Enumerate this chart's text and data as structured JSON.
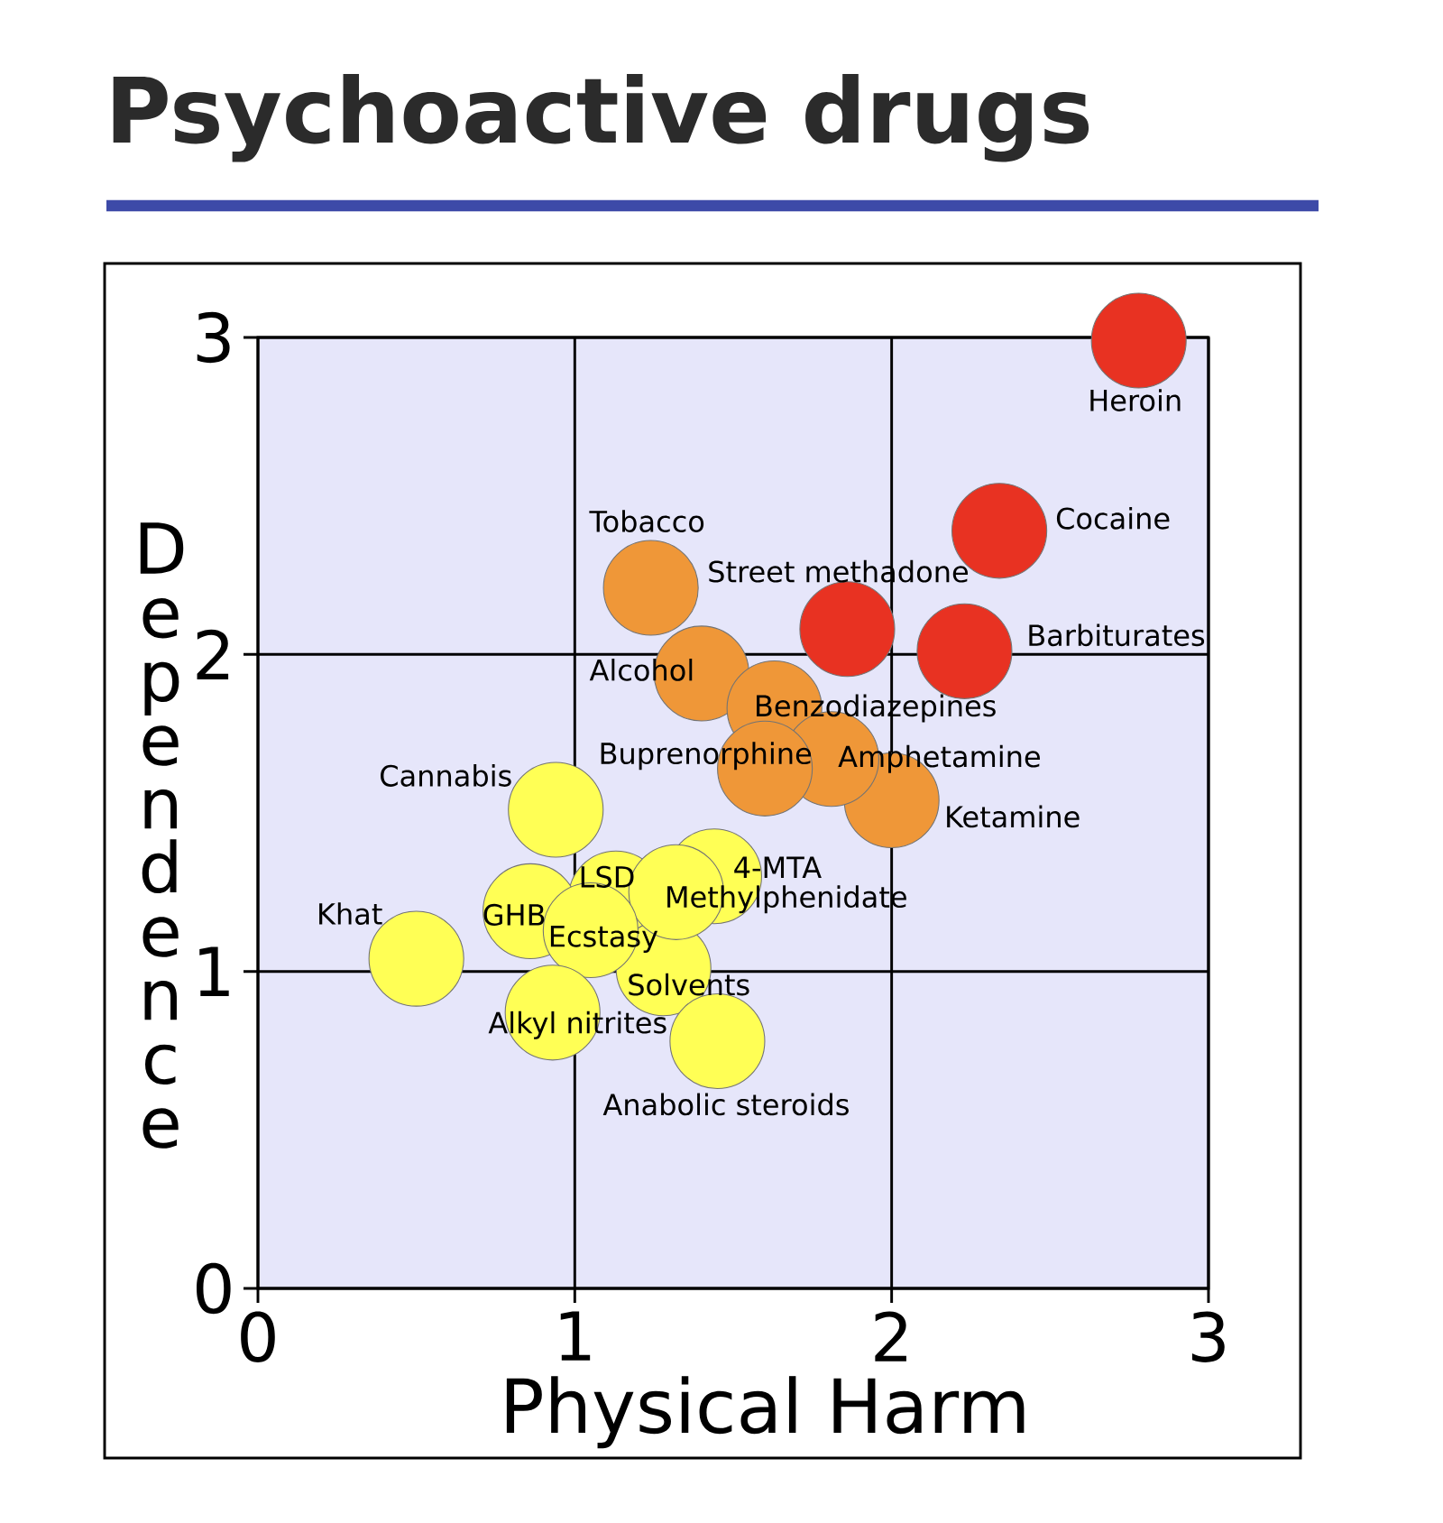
{
  "chart_data": {
    "type": "scatter",
    "title": "Psychoactive drugs",
    "xlabel": "Physical Harm",
    "ylabel": "Dependence",
    "xlim": [
      0,
      3
    ],
    "ylim": [
      0,
      3
    ],
    "xticks": [
      0,
      1,
      2,
      3
    ],
    "yticks": [
      0,
      1,
      2,
      3
    ],
    "grid": true,
    "marker": "circle",
    "series": [
      {
        "color": "#e83222",
        "x": [
          2.78,
          2.34,
          1.86,
          2.23
        ],
        "values": [
          2.99,
          2.39,
          2.08,
          2.01
        ]
      },
      {
        "color": "#ef9738",
        "x": [
          1.24,
          1.4,
          2.0,
          1.63,
          1.81,
          1.6
        ],
        "values": [
          2.21,
          1.94,
          1.54,
          1.83,
          1.67,
          1.64
        ]
      },
      {
        "color": "#ffff55",
        "x": [
          0.5,
          0.94,
          1.13,
          1.44,
          1.28,
          0.86,
          1.32,
          1.05,
          0.93,
          1.45
        ],
        "values": [
          1.04,
          1.51,
          1.23,
          1.3,
          1.01,
          1.19,
          1.25,
          1.13,
          0.87,
          0.78
        ]
      }
    ],
    "annotations": [
      {
        "text": "Heroin",
        "x": 2.78,
        "y": 2.99
      },
      {
        "text": "Cocaine",
        "x": 2.34,
        "y": 2.39
      },
      {
        "text": "Tobacco",
        "x": 1.24,
        "y": 2.21
      },
      {
        "text": "Street methadone",
        "x": 1.86,
        "y": 2.08
      },
      {
        "text": "Barbiturates",
        "x": 2.23,
        "y": 2.01
      },
      {
        "text": "Alcohol",
        "x": 1.4,
        "y": 1.94
      },
      {
        "text": "Benzodiazepines",
        "x": 1.63,
        "y": 1.83
      },
      {
        "text": "Buprenorphine",
        "x": 1.6,
        "y": 1.64
      },
      {
        "text": "Amphetamine",
        "x": 1.81,
        "y": 1.67
      },
      {
        "text": "Cannabis",
        "x": 0.94,
        "y": 1.51
      },
      {
        "text": "Ketamine",
        "x": 2.0,
        "y": 1.54
      },
      {
        "text": "4-MTA",
        "x": 1.44,
        "y": 1.3
      },
      {
        "text": "LSD",
        "x": 1.13,
        "y": 1.23
      },
      {
        "text": "Methylphenidate",
        "x": 1.32,
        "y": 1.25
      },
      {
        "text": "Khat",
        "x": 0.5,
        "y": 1.04
      },
      {
        "text": "GHB",
        "x": 0.86,
        "y": 1.19
      },
      {
        "text": "Ecstasy",
        "x": 1.05,
        "y": 1.13
      },
      {
        "text": "Solvents",
        "x": 1.28,
        "y": 1.01
      },
      {
        "text": "Alkyl nitrites",
        "x": 0.93,
        "y": 0.87
      },
      {
        "text": "Anabolic steroids",
        "x": 1.45,
        "y": 0.78
      }
    ]
  }
}
